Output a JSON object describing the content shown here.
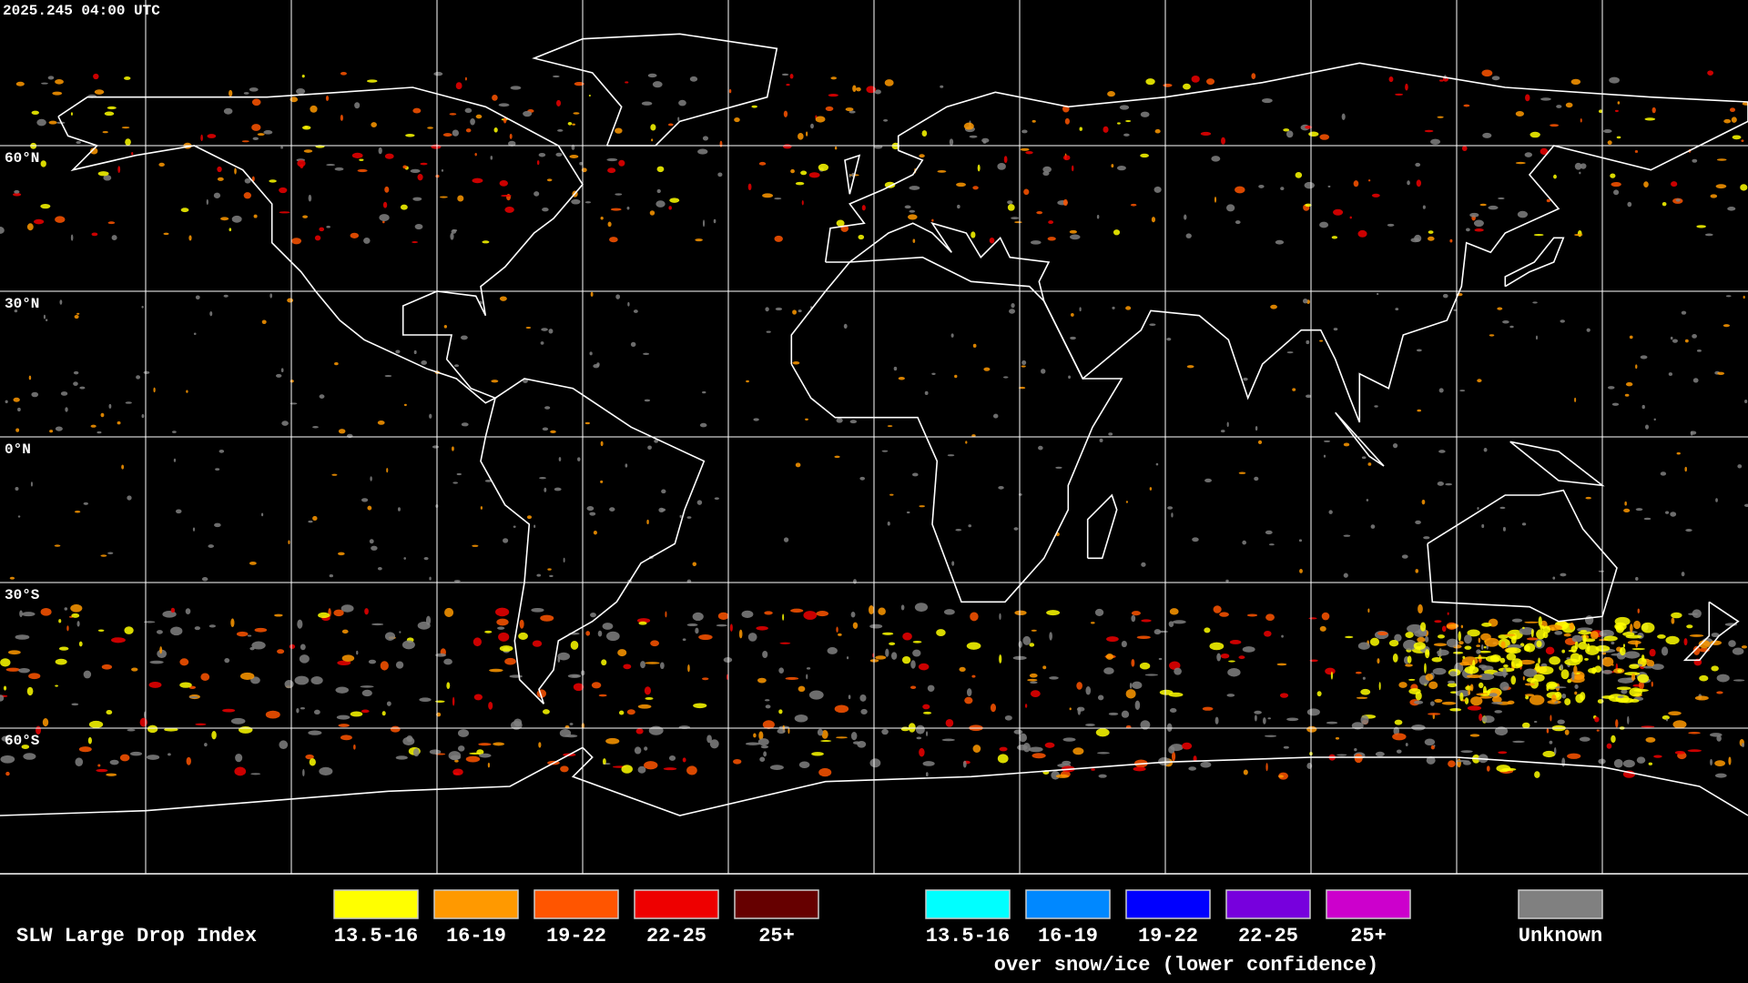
{
  "header": {
    "timestamp": "2025.245 04:00 UTC"
  },
  "map": {
    "latitude_labels": [
      "60°N",
      "30°N",
      "0°N",
      "30°S",
      "60°S"
    ]
  },
  "legend": {
    "title": "SLW Large Drop Index",
    "groups": [
      {
        "items": [
          {
            "label": "13.5-16",
            "color": "#ffff00"
          },
          {
            "label": "16-19",
            "color": "#ff9900"
          },
          {
            "label": "19-22",
            "color": "#ff5500"
          },
          {
            "label": "22-25",
            "color": "#ee0000"
          },
          {
            "label": "25+",
            "color": "#660000"
          }
        ]
      },
      {
        "items": [
          {
            "label": "13.5-16",
            "color": "#00ffff"
          },
          {
            "label": "16-19",
            "color": "#0088ff"
          },
          {
            "label": "19-22",
            "color": "#0000ff"
          },
          {
            "label": "22-25",
            "color": "#7700dd"
          },
          {
            "label": "25+",
            "color": "#cc00cc"
          }
        ],
        "caption": "over snow/ice (lower confidence)"
      },
      {
        "items": [
          {
            "label": "Unknown",
            "color": "#808080"
          }
        ]
      }
    ]
  }
}
